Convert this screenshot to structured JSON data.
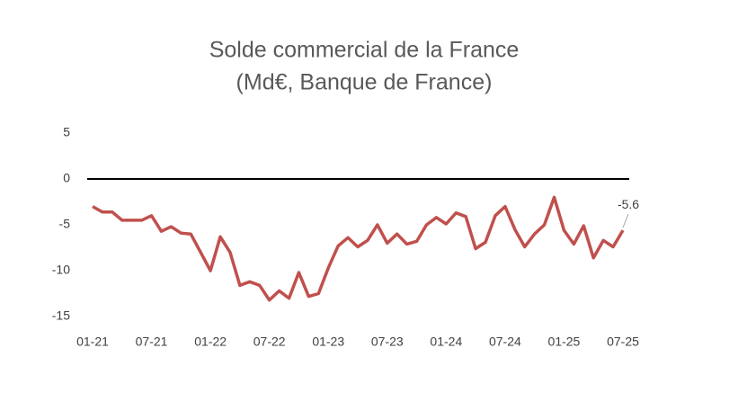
{
  "chart_data": {
    "type": "line",
    "title": "Solde commercial de la France",
    "subtitle": "(Md€, Banque de France)",
    "categories": [
      "01-21",
      null,
      null,
      null,
      null,
      null,
      "07-21",
      null,
      null,
      null,
      null,
      null,
      "01-22",
      null,
      null,
      null,
      null,
      null,
      "07-22",
      null,
      null,
      null,
      null,
      null,
      "01-23",
      null,
      null,
      null,
      null,
      null,
      "07-23",
      null,
      null,
      null,
      null,
      null,
      "01-24",
      null,
      null,
      null,
      null,
      null,
      "07-24",
      null,
      null,
      null,
      null,
      null,
      "01-25",
      null,
      null,
      null,
      null,
      null,
      "07-25"
    ],
    "series": [
      {
        "name": "Solde commercial",
        "color": "#c0504d",
        "values": [
          -3.0,
          -3.6,
          -3.6,
          -4.5,
          -4.5,
          -4.5,
          -4.0,
          -5.7,
          -5.2,
          -5.9,
          -6.0,
          -8.0,
          -10.0,
          -6.3,
          -8.0,
          -11.6,
          -11.2,
          -11.6,
          -13.2,
          -12.2,
          -13.0,
          -10.2,
          -12.8,
          -12.5,
          -9.7,
          -7.3,
          -6.4,
          -7.4,
          -6.7,
          -5.0,
          -7.0,
          -6.0,
          -7.1,
          -6.8,
          -5.0,
          -4.2,
          -4.9,
          -3.7,
          -4.1,
          -7.6,
          -6.9,
          -4.0,
          -3.0,
          -5.5,
          -7.4,
          -6.0,
          -5.0,
          -2.0,
          -5.6,
          -7.1,
          -5.1,
          -8.6,
          -6.7,
          -7.4,
          -5.6
        ],
        "value_labels": [
          null,
          null,
          null,
          null,
          null,
          null,
          null,
          null,
          null,
          null,
          null,
          null,
          null,
          null,
          null,
          null,
          null,
          null,
          null,
          null,
          null,
          null,
          null,
          null,
          null,
          null,
          null,
          null,
          null,
          null,
          null,
          null,
          null,
          null,
          null,
          null,
          null,
          null,
          null,
          null,
          null,
          null,
          null,
          null,
          null,
          null,
          null,
          null,
          null,
          null,
          null,
          null,
          null,
          null,
          "-5.6"
        ]
      }
    ],
    "ylim": [
      -15,
      5
    ],
    "yticks": [
      -15,
      -10,
      -5,
      0,
      5
    ],
    "grid": false
  }
}
